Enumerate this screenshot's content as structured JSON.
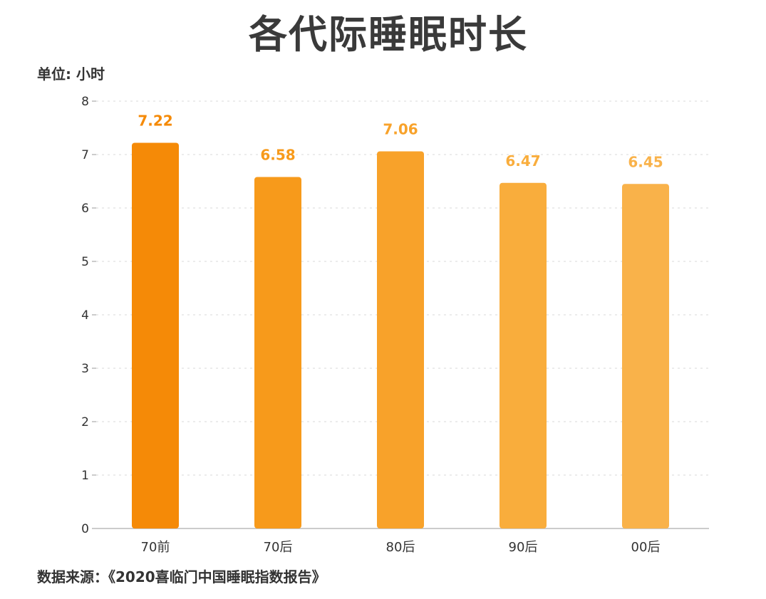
{
  "chart_data": {
    "type": "bar",
    "title": "各代际睡眠时长",
    "ylabel": "单位: 小时",
    "source": "数据来源：《2020喜临门中国睡眠指数报告》",
    "categories": [
      "70前",
      "70后",
      "80后",
      "90后",
      "00后"
    ],
    "values": [
      7.22,
      6.58,
      7.06,
      6.47,
      6.45
    ],
    "value_labels": [
      "7.22",
      "6.58",
      "7.06",
      "6.47",
      "6.45"
    ],
    "ylim": [
      0,
      8
    ],
    "yticks": [
      0,
      1,
      2,
      3,
      4,
      5,
      6,
      7,
      8
    ],
    "grid": true,
    "legend": "none",
    "colors": [
      "#f58a07",
      "#f79a1b",
      "#f8a22a",
      "#f9ad3c",
      "#f9b24a"
    ]
  }
}
